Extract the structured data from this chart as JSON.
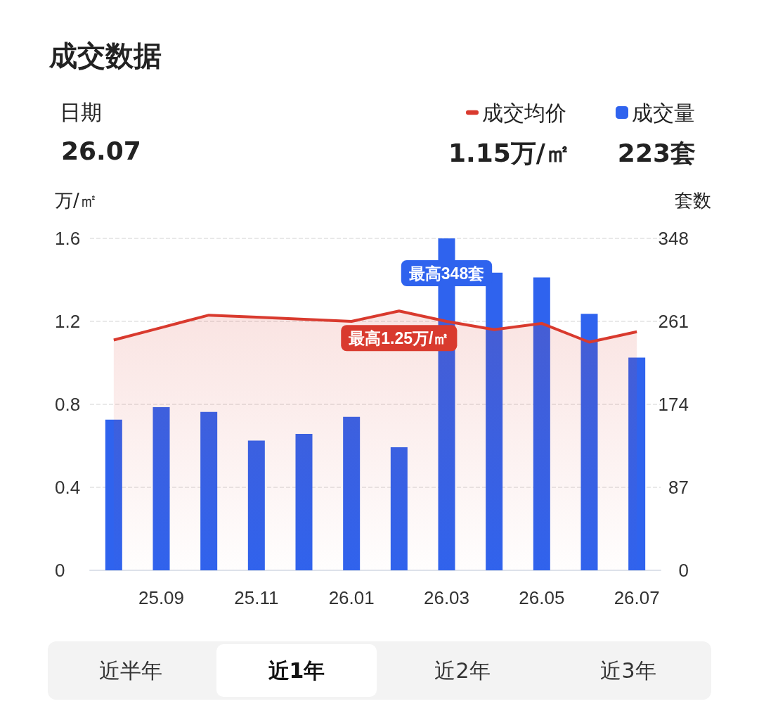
{
  "chart_data": {
    "type": "bar",
    "title": "成交数据",
    "ylabel": "万/㎡",
    "y2label": "套数",
    "categories": [
      null,
      "25.09",
      null,
      "25.11",
      null,
      "26.01",
      null,
      "26.03",
      null,
      "26.05",
      null,
      "26.07"
    ],
    "series": [
      {
        "name": "成交均价",
        "type": "area",
        "color": "#d93a2e",
        "values": [
          1.11,
          1.17,
          1.23,
          1.22,
          1.21,
          1.2,
          1.25,
          1.2,
          1.16,
          1.19,
          1.1,
          1.15
        ]
      },
      {
        "name": "成交量",
        "axis": "y2",
        "color": "#2f63ee",
        "values": [
          158,
          171,
          166,
          136,
          143,
          161,
          129,
          348,
          312,
          307,
          269,
          223
        ]
      }
    ],
    "ylim": [
      0,
      1.6
    ],
    "yticks": [
      0,
      0.4,
      0.8,
      1.2,
      1.6
    ],
    "y2lim": [
      0,
      348
    ],
    "y2ticks": [
      0,
      87,
      174,
      261,
      348
    ],
    "grid": "y",
    "legend": "top right",
    "marker": "none",
    "annotations": [
      "日期",
      "26.07",
      "1.15万/㎡",
      "223套",
      "最高348套",
      "最高1.25万/㎡",
      "近半年",
      "近1年",
      "近2年",
      "近3年"
    ]
  }
}
